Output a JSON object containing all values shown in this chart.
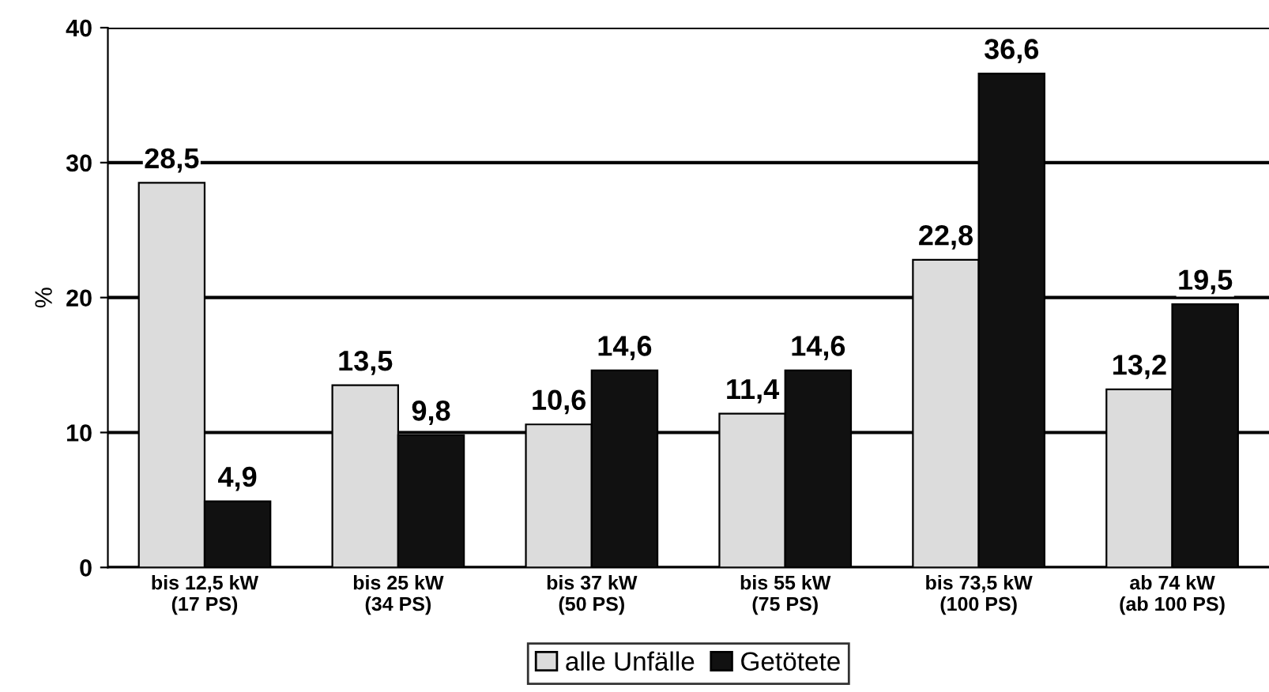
{
  "chart_data": {
    "type": "bar",
    "ylabel": "%",
    "categories": [
      "bis 12,5 kW\n(17 PS)",
      "bis 25 kW\n(34 PS)",
      "bis 37 kW\n(50 PS)",
      "bis 55 kW\n(75 PS)",
      "bis 73,5 kW\n(100 PS)",
      "ab 74 kW\n(ab 100 PS)"
    ],
    "series": [
      {
        "name": "alle Unfälle",
        "color": "#dcdcdc",
        "values": [
          28.5,
          13.5,
          10.6,
          11.4,
          22.8,
          13.2
        ],
        "value_labels": [
          "28,5",
          "13,5",
          "10,6",
          "11,4",
          "22,8",
          "13,2"
        ]
      },
      {
        "name": "Getötete",
        "color": "#111111",
        "values": [
          4.9,
          9.8,
          14.6,
          14.6,
          36.6,
          19.5
        ],
        "value_labels": [
          "4,9",
          "9,8",
          "14,6",
          "14,6",
          "36,6",
          "19,5"
        ]
      }
    ],
    "ylim": [
      0,
      40
    ],
    "yticks": [
      0,
      10,
      20,
      30,
      40
    ],
    "grid": "y",
    "legend": "bottom"
  }
}
